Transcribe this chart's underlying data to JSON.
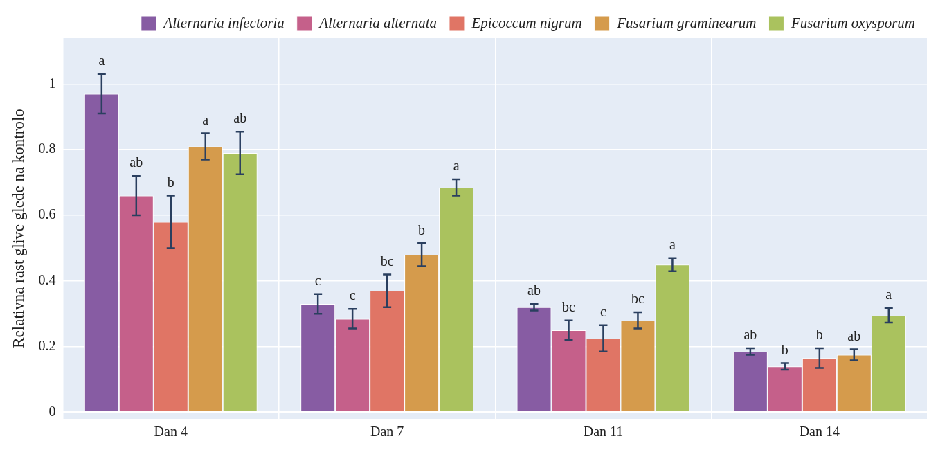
{
  "chart_data": {
    "type": "bar",
    "ylabel": "Relativna rast glive glede na kontrolo",
    "categories": [
      "Dan 4",
      "Dan 7",
      "Dan 11",
      "Dan 14"
    ],
    "series": [
      {
        "name": "Alternaria infectoria",
        "color": "#875ca3",
        "values": [
          0.97,
          0.33,
          0.32,
          0.185
        ],
        "errors": [
          0.06,
          0.03,
          0.01,
          0.01
        ],
        "value_labels": [
          "a",
          "c",
          "ab",
          "ab"
        ]
      },
      {
        "name": "Alternaria alternata",
        "color": "#c5608a",
        "values": [
          0.66,
          0.285,
          0.25,
          0.14
        ],
        "errors": [
          0.06,
          0.03,
          0.03,
          0.01
        ],
        "value_labels": [
          "ab",
          "c",
          "bc",
          "b"
        ]
      },
      {
        "name": "Epicoccum nigrum",
        "color": "#e07565",
        "values": [
          0.58,
          0.37,
          0.225,
          0.165
        ],
        "errors": [
          0.08,
          0.05,
          0.04,
          0.03
        ],
        "value_labels": [
          "b",
          "bc",
          "c",
          "b"
        ]
      },
      {
        "name": "Fusarium graminearum",
        "color": "#d59b4c",
        "values": [
          0.81,
          0.48,
          0.28,
          0.175
        ],
        "errors": [
          0.04,
          0.035,
          0.025,
          0.017
        ],
        "value_labels": [
          "a",
          "b",
          "bc",
          "ab"
        ]
      },
      {
        "name": "Fusarium oxysporum",
        "color": "#aac25e",
        "values": [
          0.79,
          0.685,
          0.45,
          0.295
        ],
        "errors": [
          0.065,
          0.025,
          0.02,
          0.022
        ],
        "value_labels": [
          "ab",
          "a",
          "a",
          "a"
        ]
      }
    ],
    "ylim": [
      -0.02,
      1.14
    ],
    "yticks": [
      0,
      0.2,
      0.4,
      0.6,
      0.8,
      1
    ],
    "grid": true,
    "legend": "top right"
  }
}
